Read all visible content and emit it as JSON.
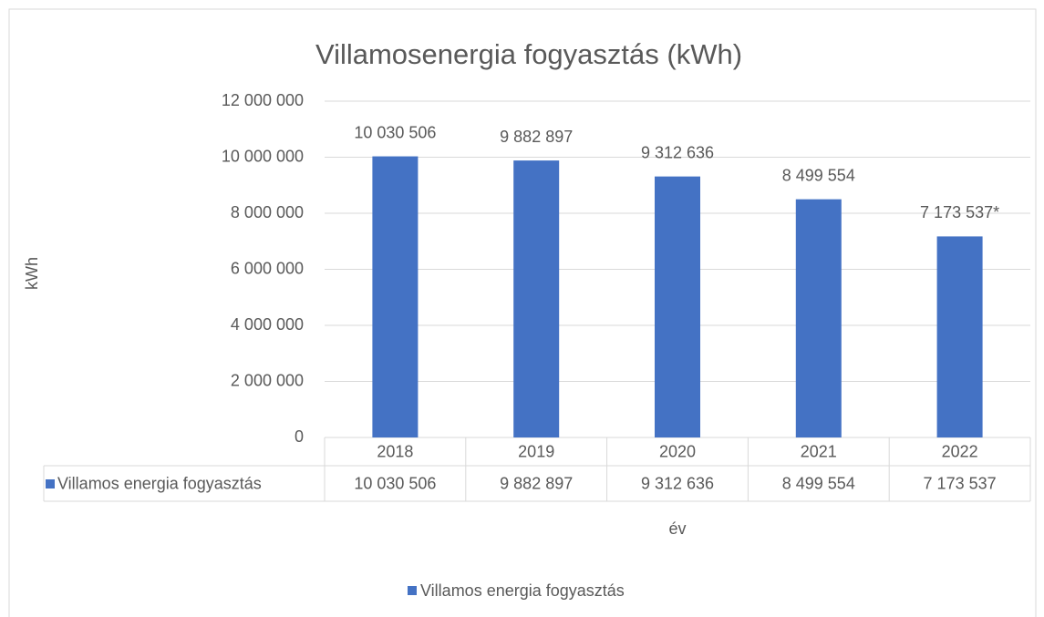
{
  "chart_data": {
    "type": "bar",
    "title": "Villamosenergia fogyasztás (kWh)",
    "x_label": "év",
    "y_label": "kWh",
    "categories": [
      "2018",
      "2019",
      "2020",
      "2021",
      "2022"
    ],
    "series": [
      {
        "name": "Villamos energia fogyasztás",
        "color": "#4472c4",
        "values": [
          10030506,
          9882897,
          9312636,
          8499554,
          7173537
        ],
        "value_labels": [
          "10 030 506",
          "9 882 897",
          "9 312 636",
          "8 499 554",
          "7 173 537*"
        ]
      }
    ],
    "data_table": {
      "cells": [
        "10 030 506",
        "9 882 897",
        "9 312 636",
        "8 499 554",
        "7 173 537"
      ]
    },
    "ylim": [
      0,
      12000000
    ],
    "yticks": [
      {
        "value": 0,
        "label": "0"
      },
      {
        "value": 2000000,
        "label": "2 000 000"
      },
      {
        "value": 4000000,
        "label": "4 000 000"
      },
      {
        "value": 6000000,
        "label": "6 000 000"
      },
      {
        "value": 8000000,
        "label": "8 000 000"
      },
      {
        "value": 10000000,
        "label": "10 000 000"
      },
      {
        "value": 12000000,
        "label": "12 000 000"
      }
    ],
    "grid": true,
    "legend": "bottom"
  }
}
